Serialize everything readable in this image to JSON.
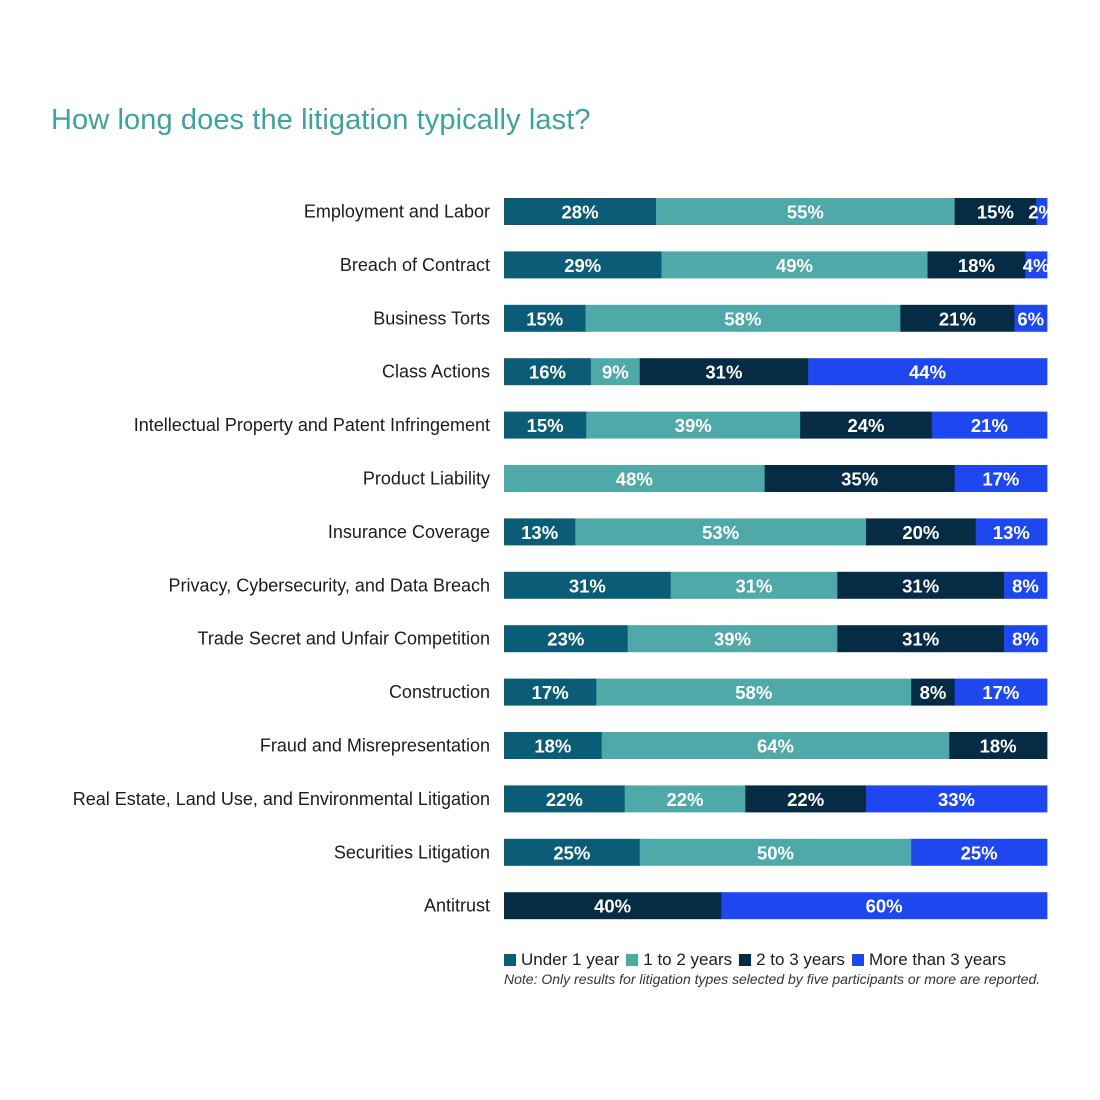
{
  "chart_data": {
    "type": "bar",
    "orientation": "horizontal",
    "stacked": true,
    "title": "How long does the litigation typically last?",
    "categories": [
      "Employment and Labor",
      "Breach of Contract",
      "Business Torts",
      "Class Actions",
      "Intellectual Property and Patent Infringement",
      "Product Liability",
      "Insurance Coverage",
      "Privacy, Cybersecurity, and Data Breach",
      "Trade Secret and Unfair Competition",
      "Construction",
      "Fraud and Misrepresentation",
      "Real Estate, Land Use, and Environmental Litigation",
      "Securities Litigation",
      "Antitrust"
    ],
    "series": [
      {
        "name": "Under 1 year",
        "color": "#0b5c77",
        "values": [
          28,
          29,
          15,
          16,
          15,
          0,
          13,
          31,
          23,
          17,
          18,
          22,
          25,
          0
        ]
      },
      {
        "name": "1 to 2 years",
        "color": "#4fa9a8",
        "values": [
          55,
          49,
          58,
          9,
          39,
          48,
          53,
          31,
          39,
          58,
          64,
          22,
          50,
          0
        ]
      },
      {
        "name": "2 to 3 years",
        "color": "#062c45",
        "values": [
          15,
          18,
          21,
          31,
          24,
          35,
          20,
          31,
          31,
          8,
          18,
          22,
          0,
          40
        ]
      },
      {
        "name": "More than 3 years",
        "color": "#1f47ef",
        "values": [
          2,
          4,
          6,
          44,
          21,
          17,
          13,
          8,
          8,
          17,
          0,
          33,
          25,
          60
        ]
      }
    ],
    "value_suffix": "%",
    "xlim": [
      0,
      100
    ],
    "legend_position": "bottom",
    "note": "Note: Only results for litigation types selected by five participants or more are reported."
  }
}
